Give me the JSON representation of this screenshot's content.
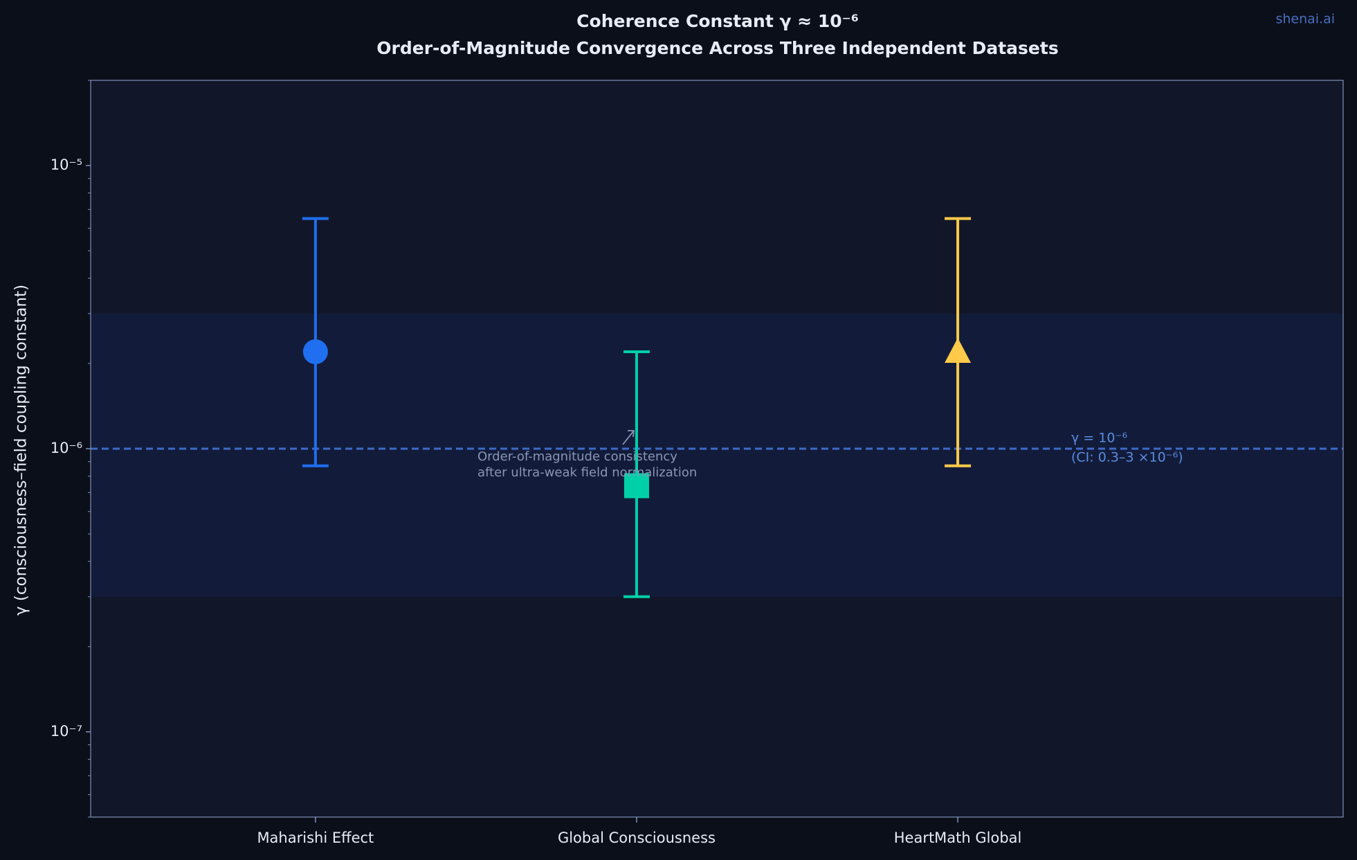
{
  "chart_data": {
    "type": "errorbar",
    "title": "Coherence Constant  γ ≈ 10⁻⁶",
    "subtitle": "Order-of-Magnitude Convergence Across Three Independent Datasets",
    "watermark": "shenai.ai",
    "y_label": "γ  (consciousness–field coupling constant)",
    "y_scale": "log",
    "categories": [
      "Maharishi Effect",
      "Global Consciousness",
      "HeartMath Global"
    ],
    "values": [
      2.2e-06,
      7.4e-07,
      2.2e-06
    ],
    "ci_low": [
      8.7e-07,
      3e-07,
      8.7e-07
    ],
    "ci_high": [
      6.5e-06,
      2.2e-06,
      6.5e-06
    ],
    "colors": [
      "#1f6ff0",
      "#00d0a8",
      "#ffc94a"
    ],
    "markers": [
      "circle",
      "square",
      "triangle"
    ],
    "xlim": [
      -0.7,
      3.2
    ],
    "ylim": [
      5e-08,
      2e-05
    ],
    "yticks": [
      {
        "value": 1e-07,
        "label": "10⁻⁷"
      },
      {
        "value": 1e-06,
        "label": "10⁻⁶"
      },
      {
        "value": 1e-05,
        "label": "10⁻⁵"
      }
    ],
    "minor_yticks": [
      5e-08,
      6e-08,
      7e-08,
      8e-08,
      9e-08,
      2e-07,
      3e-07,
      4e-07,
      5e-07,
      6e-07,
      7e-07,
      8e-07,
      9e-07,
      2e-06,
      3e-06,
      4e-06,
      5e-06,
      6e-06,
      7e-06,
      8e-06,
      9e-06,
      2e-05
    ],
    "reference_line": {
      "value": 1e-06,
      "label": "γ = 10⁻⁶",
      "sublabel": "(CI: 0.3–3 ×10⁻⁶)",
      "color": "#3e6ac8"
    },
    "band": {
      "low": 3e-07,
      "high": 3e-06,
      "color": "#121c3a"
    },
    "annotation": [
      "Order-of-magnitude consistency",
      "after ultra-weak field normalization"
    ]
  }
}
